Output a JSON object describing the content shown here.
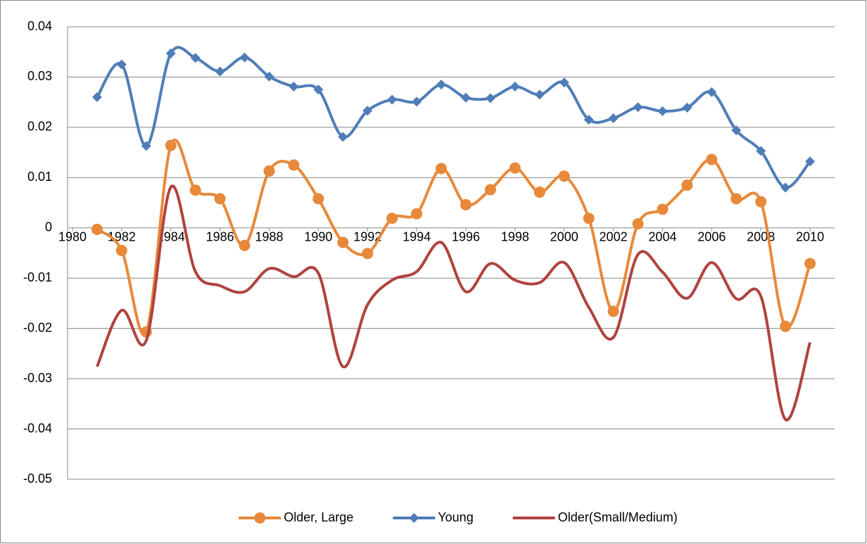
{
  "chart_data": {
    "type": "line",
    "smooth": true,
    "grid": true,
    "legend": "bottom",
    "x": [
      1981,
      1982,
      1983,
      1984,
      1985,
      1986,
      1987,
      1988,
      1989,
      1990,
      1991,
      1992,
      1993,
      1994,
      1995,
      1996,
      1997,
      1998,
      1999,
      2000,
      2001,
      2002,
      2003,
      2004,
      2005,
      2006,
      2007,
      2008,
      2009,
      2010
    ],
    "xlim": [
      1980,
      2011
    ],
    "xticks": [
      1980,
      1982,
      1984,
      1986,
      1988,
      1990,
      1992,
      1994,
      1996,
      1998,
      2000,
      2002,
      2004,
      2006,
      2008,
      2010
    ],
    "ylim": [
      -0.05,
      0.04
    ],
    "yticks": [
      -0.05,
      -0.04,
      -0.03,
      -0.02,
      -0.01,
      0,
      0.01,
      0.02,
      0.03,
      0.04
    ],
    "series": [
      {
        "name": "Older, Large",
        "color": "#E8893A",
        "marker": "circle",
        "values": [
          -0.0003,
          -0.0045,
          -0.0207,
          0.0164,
          0.0075,
          0.0058,
          -0.0035,
          0.0113,
          0.0125,
          0.0058,
          -0.0029,
          -0.0051,
          0.0019,
          0.0028,
          0.0118,
          0.0046,
          0.0076,
          0.0119,
          0.0071,
          0.0103,
          0.0019,
          -0.0166,
          0.0008,
          0.0037,
          0.0085,
          0.0136,
          0.0058,
          0.0052,
          -0.0196,
          -0.0071
        ]
      },
      {
        "name": "Young",
        "color": "#4F7DB8",
        "marker": "diamond",
        "values": [
          0.026,
          0.0325,
          0.0163,
          0.0347,
          0.0338,
          0.0311,
          0.0339,
          0.0301,
          0.0281,
          0.0275,
          0.0181,
          0.0233,
          0.0255,
          0.0251,
          0.0285,
          0.0259,
          0.0258,
          0.0281,
          0.0265,
          0.0289,
          0.0215,
          0.0218,
          0.024,
          0.0232,
          0.0239,
          0.027,
          0.0194,
          0.0153,
          0.008,
          0.0132
        ]
      },
      {
        "name": "Older(Small/Medium)",
        "color": "#B0433F",
        "marker": "none",
        "values": [
          -0.0276,
          -0.0164,
          -0.0224,
          0.0081,
          -0.0087,
          -0.0115,
          -0.0127,
          -0.0081,
          -0.0097,
          -0.009,
          -0.0276,
          -0.0153,
          -0.0104,
          -0.0087,
          -0.0029,
          -0.0127,
          -0.0071,
          -0.0104,
          -0.0109,
          -0.0069,
          -0.0158,
          -0.0218,
          -0.0053,
          -0.0088,
          -0.014,
          -0.0069,
          -0.0141,
          -0.0136,
          -0.0381,
          -0.0228
        ]
      }
    ]
  }
}
